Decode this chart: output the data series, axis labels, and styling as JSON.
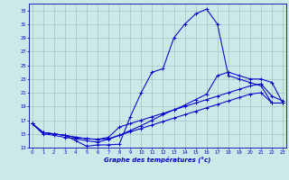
{
  "title": "Graphe des températures (°c)",
  "hours": [
    0,
    1,
    2,
    3,
    4,
    5,
    6,
    7,
    8,
    9,
    10,
    11,
    12,
    13,
    14,
    15,
    16,
    17,
    18,
    19,
    20,
    21,
    22,
    23
  ],
  "line_color": "#0000cc",
  "bg_color": "#cce8e8",
  "grid_color": "#99bbbb",
  "axis_color": "#0000aa",
  "text_color": "#0000cc",
  "ylim": [
    13,
    34
  ],
  "yticks": [
    13,
    15,
    17,
    19,
    21,
    23,
    25,
    27,
    29,
    31,
    33
  ],
  "xlim": [
    -0.3,
    23.3
  ],
  "xticks": [
    0,
    1,
    2,
    3,
    4,
    5,
    6,
    7,
    8,
    9,
    10,
    11,
    12,
    13,
    14,
    15,
    16,
    17,
    18,
    19,
    20,
    21,
    22,
    23
  ],
  "curve1": [
    16.5,
    15.2,
    15.0,
    14.8,
    14.0,
    13.2,
    13.4,
    13.4,
    13.5,
    17.5,
    21.0,
    24.0,
    24.5,
    29.0,
    31.0,
    32.5,
    33.2,
    31.0,
    23.5,
    23.0,
    22.5,
    22.0,
    19.5,
    19.5
  ],
  "curve2": [
    16.5,
    15.2,
    15.0,
    14.8,
    14.5,
    14.3,
    14.2,
    14.3,
    14.8,
    15.5,
    16.2,
    17.0,
    17.8,
    18.5,
    19.2,
    20.0,
    20.8,
    23.5,
    24.0,
    23.5,
    23.0,
    23.0,
    22.5,
    19.5
  ],
  "curve3": [
    16.5,
    15.2,
    15.0,
    14.8,
    14.5,
    14.3,
    14.2,
    14.5,
    16.0,
    16.5,
    17.0,
    17.5,
    18.0,
    18.5,
    19.0,
    19.5,
    20.0,
    20.5,
    21.0,
    21.5,
    22.0,
    22.3,
    20.5,
    19.8
  ],
  "curve4": [
    16.5,
    15.0,
    14.8,
    14.5,
    14.3,
    14.0,
    13.8,
    14.2,
    14.8,
    15.3,
    15.8,
    16.3,
    16.8,
    17.3,
    17.8,
    18.3,
    18.8,
    19.3,
    19.8,
    20.3,
    20.8,
    21.0,
    19.5,
    19.5
  ]
}
